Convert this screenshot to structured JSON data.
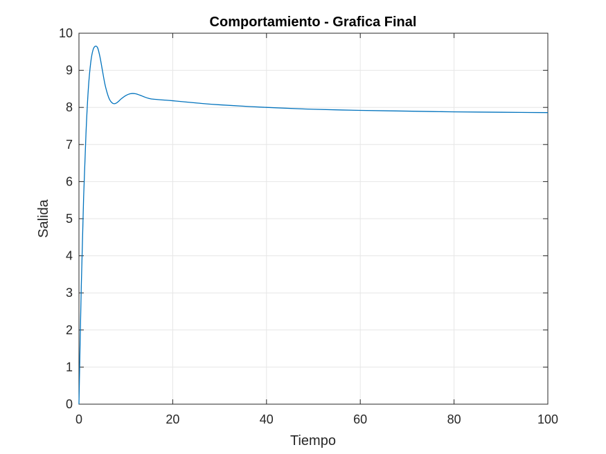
{
  "chart_data": {
    "type": "line",
    "title": "Comportamiento - Grafica Final",
    "xlabel": "Tiempo",
    "ylabel": "Salida",
    "xlim": [
      0,
      100
    ],
    "ylim": [
      0,
      10
    ],
    "xticks": [
      0,
      20,
      40,
      60,
      80,
      100
    ],
    "yticks": [
      0,
      1,
      2,
      3,
      4,
      5,
      6,
      7,
      8,
      9,
      10
    ],
    "grid": true,
    "colors": {
      "line": "#0072BD",
      "grid": "#e6e6e6",
      "axes": "#262626"
    },
    "series": [
      {
        "x": [
          0,
          0.5,
          1,
          1.5,
          2,
          2.5,
          3,
          3.5,
          4,
          4.5,
          5,
          5.5,
          6,
          6.5,
          7,
          7.5,
          8,
          8.5,
          9,
          10,
          11,
          12,
          13,
          14,
          15,
          16,
          18,
          20,
          25,
          30,
          40,
          50,
          60,
          70,
          80,
          90,
          100
        ],
        "y": [
          0,
          3.2,
          5.6,
          7.3,
          8.5,
          9.2,
          9.55,
          9.65,
          9.6,
          9.35,
          9.0,
          8.65,
          8.4,
          8.22,
          8.13,
          8.1,
          8.12,
          8.17,
          8.23,
          8.32,
          8.37,
          8.37,
          8.33,
          8.28,
          8.24,
          8.22,
          8.2,
          8.18,
          8.12,
          8.07,
          8.0,
          7.95,
          7.92,
          7.9,
          7.88,
          7.87,
          7.86
        ]
      }
    ]
  }
}
